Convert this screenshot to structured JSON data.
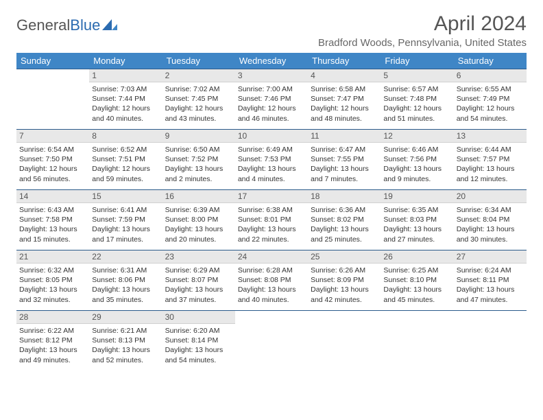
{
  "logo": {
    "text1": "General",
    "text2": "Blue"
  },
  "title": "April 2024",
  "location": "Bradford Woods, Pennsylvania, United States",
  "colors": {
    "header_bg": "#3f86c6",
    "header_fg": "#ffffff",
    "daynum_bg": "#e8e8e8",
    "border": "#2a5a8a",
    "logo_blue": "#2b6bb0"
  },
  "day_headers": [
    "Sunday",
    "Monday",
    "Tuesday",
    "Wednesday",
    "Thursday",
    "Friday",
    "Saturday"
  ],
  "weeks": [
    [
      null,
      {
        "n": "1",
        "sr": "7:03 AM",
        "ss": "7:44 PM",
        "dl": "12 hours and 40 minutes."
      },
      {
        "n": "2",
        "sr": "7:02 AM",
        "ss": "7:45 PM",
        "dl": "12 hours and 43 minutes."
      },
      {
        "n": "3",
        "sr": "7:00 AM",
        "ss": "7:46 PM",
        "dl": "12 hours and 46 minutes."
      },
      {
        "n": "4",
        "sr": "6:58 AM",
        "ss": "7:47 PM",
        "dl": "12 hours and 48 minutes."
      },
      {
        "n": "5",
        "sr": "6:57 AM",
        "ss": "7:48 PM",
        "dl": "12 hours and 51 minutes."
      },
      {
        "n": "6",
        "sr": "6:55 AM",
        "ss": "7:49 PM",
        "dl": "12 hours and 54 minutes."
      }
    ],
    [
      {
        "n": "7",
        "sr": "6:54 AM",
        "ss": "7:50 PM",
        "dl": "12 hours and 56 minutes."
      },
      {
        "n": "8",
        "sr": "6:52 AM",
        "ss": "7:51 PM",
        "dl": "12 hours and 59 minutes."
      },
      {
        "n": "9",
        "sr": "6:50 AM",
        "ss": "7:52 PM",
        "dl": "13 hours and 2 minutes."
      },
      {
        "n": "10",
        "sr": "6:49 AM",
        "ss": "7:53 PM",
        "dl": "13 hours and 4 minutes."
      },
      {
        "n": "11",
        "sr": "6:47 AM",
        "ss": "7:55 PM",
        "dl": "13 hours and 7 minutes."
      },
      {
        "n": "12",
        "sr": "6:46 AM",
        "ss": "7:56 PM",
        "dl": "13 hours and 9 minutes."
      },
      {
        "n": "13",
        "sr": "6:44 AM",
        "ss": "7:57 PM",
        "dl": "13 hours and 12 minutes."
      }
    ],
    [
      {
        "n": "14",
        "sr": "6:43 AM",
        "ss": "7:58 PM",
        "dl": "13 hours and 15 minutes."
      },
      {
        "n": "15",
        "sr": "6:41 AM",
        "ss": "7:59 PM",
        "dl": "13 hours and 17 minutes."
      },
      {
        "n": "16",
        "sr": "6:39 AM",
        "ss": "8:00 PM",
        "dl": "13 hours and 20 minutes."
      },
      {
        "n": "17",
        "sr": "6:38 AM",
        "ss": "8:01 PM",
        "dl": "13 hours and 22 minutes."
      },
      {
        "n": "18",
        "sr": "6:36 AM",
        "ss": "8:02 PM",
        "dl": "13 hours and 25 minutes."
      },
      {
        "n": "19",
        "sr": "6:35 AM",
        "ss": "8:03 PM",
        "dl": "13 hours and 27 minutes."
      },
      {
        "n": "20",
        "sr": "6:34 AM",
        "ss": "8:04 PM",
        "dl": "13 hours and 30 minutes."
      }
    ],
    [
      {
        "n": "21",
        "sr": "6:32 AM",
        "ss": "8:05 PM",
        "dl": "13 hours and 32 minutes."
      },
      {
        "n": "22",
        "sr": "6:31 AM",
        "ss": "8:06 PM",
        "dl": "13 hours and 35 minutes."
      },
      {
        "n": "23",
        "sr": "6:29 AM",
        "ss": "8:07 PM",
        "dl": "13 hours and 37 minutes."
      },
      {
        "n": "24",
        "sr": "6:28 AM",
        "ss": "8:08 PM",
        "dl": "13 hours and 40 minutes."
      },
      {
        "n": "25",
        "sr": "6:26 AM",
        "ss": "8:09 PM",
        "dl": "13 hours and 42 minutes."
      },
      {
        "n": "26",
        "sr": "6:25 AM",
        "ss": "8:10 PM",
        "dl": "13 hours and 45 minutes."
      },
      {
        "n": "27",
        "sr": "6:24 AM",
        "ss": "8:11 PM",
        "dl": "13 hours and 47 minutes."
      }
    ],
    [
      {
        "n": "28",
        "sr": "6:22 AM",
        "ss": "8:12 PM",
        "dl": "13 hours and 49 minutes."
      },
      {
        "n": "29",
        "sr": "6:21 AM",
        "ss": "8:13 PM",
        "dl": "13 hours and 52 minutes."
      },
      {
        "n": "30",
        "sr": "6:20 AM",
        "ss": "8:14 PM",
        "dl": "13 hours and 54 minutes."
      },
      null,
      null,
      null,
      null
    ]
  ],
  "labels": {
    "sunrise": "Sunrise:",
    "sunset": "Sunset:",
    "daylight": "Daylight:"
  }
}
